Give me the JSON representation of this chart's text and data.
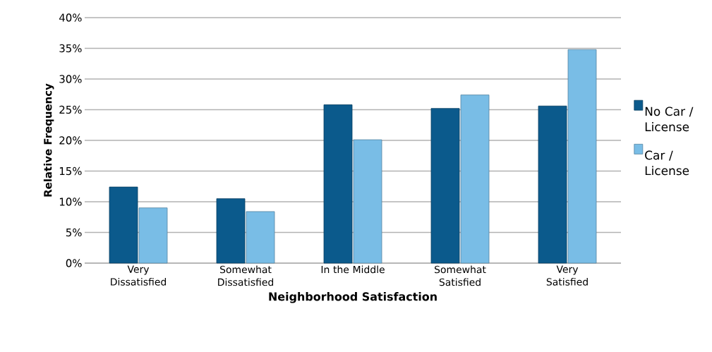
{
  "chart_data": {
    "type": "bar",
    "xlabel": "Neighborhood Satisfaction",
    "ylabel": "Relative Frequency",
    "categories": [
      "Very Dissatisfied",
      "Somewhat Dissatisfied",
      "In the Middle",
      "Somewhat Satisfied",
      "Very Satisfied"
    ],
    "series": [
      {
        "name": "No Car / License",
        "color": "#0b5a8c",
        "values": [
          12.4,
          10.5,
          25.8,
          25.2,
          25.6
        ]
      },
      {
        "name": "Car / License",
        "color": "#79bde6",
        "values": [
          9.0,
          8.4,
          20.1,
          27.4,
          34.8
        ]
      }
    ],
    "ylim": [
      0,
      40
    ],
    "yticks": [
      {
        "value": 0,
        "label": "0%"
      },
      {
        "value": 5,
        "label": "5%"
      },
      {
        "value": 10,
        "label": "10%"
      },
      {
        "value": 15,
        "label": "15%"
      },
      {
        "value": 20,
        "label": "20%"
      },
      {
        "value": 25,
        "label": "25%"
      },
      {
        "value": 30,
        "label": "30%"
      },
      {
        "value": 35,
        "label": "35%"
      },
      {
        "value": 40,
        "label": "40%"
      }
    ],
    "grid": "y",
    "legend": "right"
  }
}
